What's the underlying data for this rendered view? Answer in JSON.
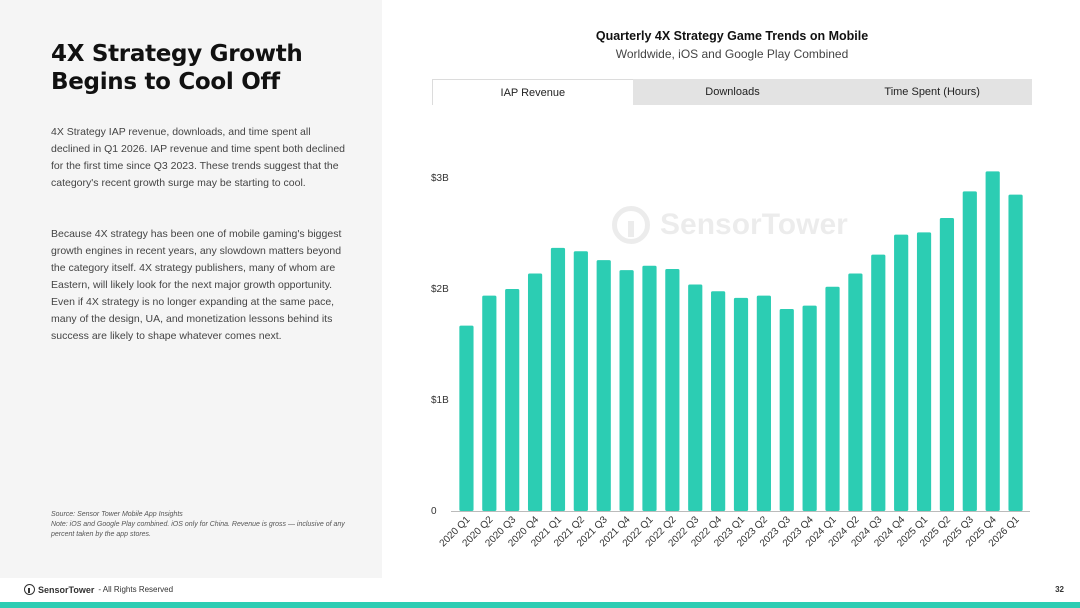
{
  "headline": "4X Strategy Growth Begins to Cool Off",
  "body": {
    "p1": "4X Strategy IAP revenue, downloads, and time spent all declined in Q1 2026. IAP revenue and time spent both declined for the first time since Q3 2023. These trends suggest that the category's recent growth surge may be starting to cool.",
    "p2": "Because 4X strategy has been one of mobile gaming's biggest growth engines in recent years, any slowdown matters beyond the category itself. 4X strategy publishers, many of whom are Eastern, will likely look for the next major growth opportunity. Even if 4X strategy is no longer expanding at the same pace, many of the design, UA, and monetization lessons behind its success are likely to shape whatever comes next."
  },
  "source": {
    "line1": "Source: Sensor Tower Mobile App Insights",
    "line2": "Note: iOS and Google Play combined. iOS only for China. Revenue is gross — inclusive of any percent taken by the app stores."
  },
  "footer": {
    "brand": "SensorTower",
    "rights": "- All Rights Reserved",
    "page": "32"
  },
  "tabs": [
    {
      "label": "IAP Revenue",
      "active": true
    },
    {
      "label": "Downloads",
      "active": false
    },
    {
      "label": "Time Spent (Hours)",
      "active": false
    }
  ],
  "watermark": "SensorTower",
  "colors": {
    "bar": "#2ccdb3",
    "accent": "#2ccdb3",
    "left_panel": "#f5f5f5"
  },
  "chart_data": {
    "type": "bar",
    "title": "Quarterly 4X Strategy Game Trends on Mobile",
    "subtitle": "Worldwide, iOS and Google Play Combined",
    "categories": [
      "2020 Q1",
      "2020 Q2",
      "2020 Q3",
      "2020 Q4",
      "2021 Q1",
      "2021 Q2",
      "2021 Q3",
      "2021 Q4",
      "2022 Q1",
      "2022 Q2",
      "2022 Q3",
      "2022 Q4",
      "2023 Q1",
      "2023 Q2",
      "2023 Q3",
      "2023 Q4",
      "2024 Q1",
      "2024 Q2",
      "2024 Q3",
      "2024 Q4",
      "2025 Q1",
      "2025 Q2",
      "2025 Q3",
      "2025 Q4",
      "2026 Q1"
    ],
    "values": [
      1.67,
      1.94,
      2.0,
      2.14,
      2.37,
      2.34,
      2.26,
      2.17,
      2.21,
      2.18,
      2.04,
      1.98,
      1.92,
      1.94,
      1.82,
      1.85,
      2.02,
      2.14,
      2.31,
      2.49,
      2.51,
      2.64,
      2.88,
      3.06,
      2.85
    ],
    "y_ticks": [
      {
        "value": 0,
        "label": "0"
      },
      {
        "value": 1,
        "label": "$1B"
      },
      {
        "value": 2,
        "label": "$2B"
      },
      {
        "value": 3,
        "label": "$3B"
      }
    ],
    "ylim": [
      0,
      3.05
    ],
    "grid": false
  }
}
